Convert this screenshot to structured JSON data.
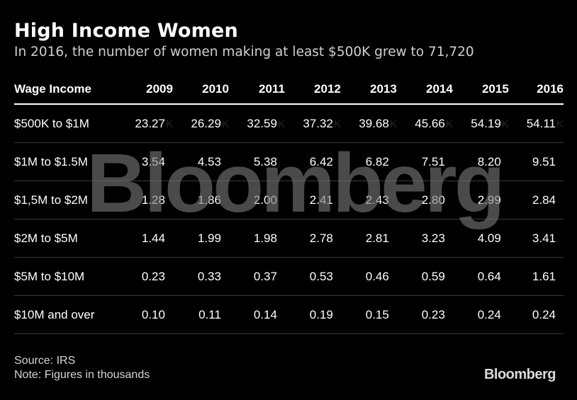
{
  "title": "High Income Women",
  "subtitle": "In 2016, the number of women making at least $500K grew to 71,720",
  "watermark": "Bloomberg",
  "source": "Source: IRS",
  "note": "Note: Figures in thousands",
  "logo": "Bloomberg",
  "chart_data": {
    "type": "table",
    "header_label": "Wage Income",
    "columns": [
      "2009",
      "2010",
      "2011",
      "2012",
      "2013",
      "2014",
      "2015",
      "2016"
    ],
    "rows": [
      {
        "label": "$500K to $1M",
        "values": [
          "23.27",
          "26.29",
          "32.59",
          "37.32",
          "39.68",
          "45.66",
          "54.19",
          "54.11"
        ],
        "suffix": "K"
      },
      {
        "label": "$1M to $1.5M",
        "values": [
          "3.54",
          "4.53",
          "5.38",
          "6.42",
          "6.82",
          "7.51",
          "8.20",
          "9.51"
        ]
      },
      {
        "label": "$1,5M to $2M",
        "values": [
          "1.28",
          "1.86",
          "2.00",
          "2.41",
          "2.43",
          "2.80",
          "2.99",
          "2.84"
        ]
      },
      {
        "label": "$2M to $5M",
        "values": [
          "1.44",
          "1.99",
          "1.98",
          "2.78",
          "2.81",
          "3.23",
          "4.09",
          "3.41"
        ]
      },
      {
        "label": "$5M to $10M",
        "values": [
          "0.23",
          "0.33",
          "0.37",
          "0.53",
          "0.46",
          "0.59",
          "0.64",
          "1.61"
        ]
      },
      {
        "label": "$10M and over",
        "values": [
          "0.10",
          "0.11",
          "0.14",
          "0.19",
          "0.15",
          "0.23",
          "0.24",
          "0.24"
        ]
      }
    ]
  }
}
